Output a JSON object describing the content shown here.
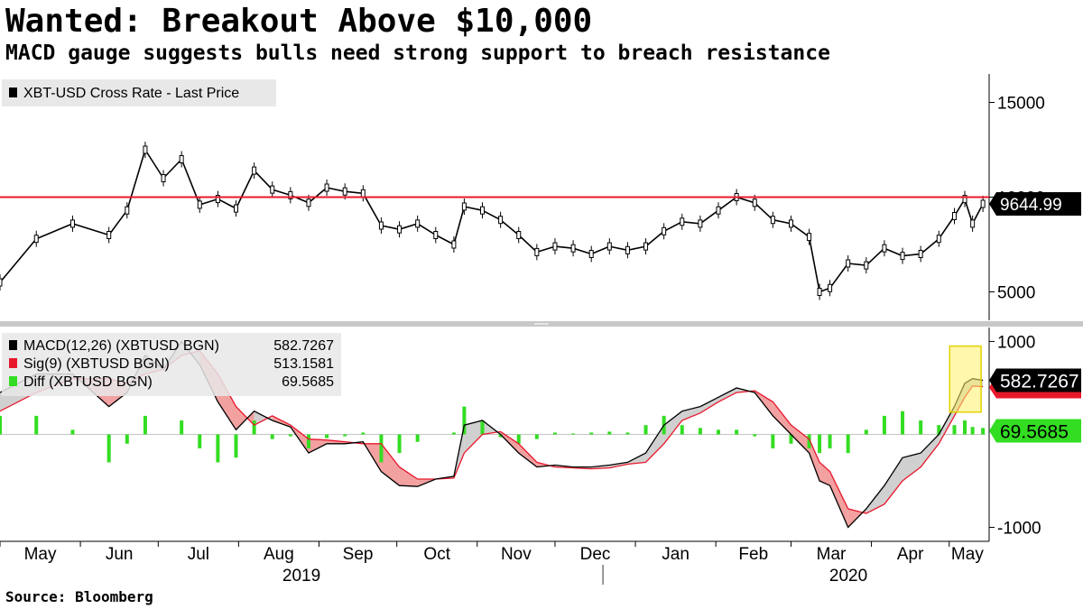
{
  "title": "Wanted: Breakout Above $10,000",
  "subtitle": "MACD gauge suggests bulls need strong support to breach resistance",
  "source": "Source: Bloomberg",
  "colors": {
    "price": "#000000",
    "resistance": "#e8182c",
    "macd": "#000000",
    "signal": "#e8182c",
    "diff": "#33dd22",
    "fill_up": "#d0d0d0",
    "fill_down": "#f2a0a0",
    "highlight": "#fff066"
  },
  "chart_data": [
    {
      "type": "line",
      "legend": [
        "XBT-USD Cross Rate - Last Price"
      ],
      "legend_position": "top-left",
      "y_axis_side": "right",
      "y_ticks": [
        "15000",
        "10000",
        "5000"
      ],
      "ylim": [
        3500,
        16500
      ],
      "grid": false,
      "resistance_level": 10000,
      "last_price_label": "9644.99",
      "x_ticks": [
        "May",
        "Jun",
        "Jul",
        "Aug",
        "Sep",
        "Oct",
        "Nov",
        "Dec",
        "Jan",
        "Feb",
        "Mar",
        "Apr",
        "May"
      ],
      "x_years": [
        "2019",
        "2020"
      ],
      "x": [
        "2019-05-01",
        "2019-05-15",
        "2019-05-29",
        "2019-06-12",
        "2019-06-19",
        "2019-06-26",
        "2019-07-03",
        "2019-07-10",
        "2019-07-17",
        "2019-07-24",
        "2019-07-31",
        "2019-08-07",
        "2019-08-14",
        "2019-08-21",
        "2019-08-28",
        "2019-09-04",
        "2019-09-11",
        "2019-09-18",
        "2019-09-25",
        "2019-10-02",
        "2019-10-09",
        "2019-10-16",
        "2019-10-23",
        "2019-10-27",
        "2019-11-03",
        "2019-11-10",
        "2019-11-17",
        "2019-11-24",
        "2019-12-01",
        "2019-12-08",
        "2019-12-15",
        "2019-12-22",
        "2019-12-29",
        "2020-01-05",
        "2020-01-12",
        "2020-01-19",
        "2020-01-26",
        "2020-02-02",
        "2020-02-09",
        "2020-02-16",
        "2020-02-23",
        "2020-03-01",
        "2020-03-08",
        "2020-03-12",
        "2020-03-16",
        "2020-03-23",
        "2020-03-30",
        "2020-04-06",
        "2020-04-13",
        "2020-04-20",
        "2020-04-27",
        "2020-05-03",
        "2020-05-07",
        "2020-05-10",
        "2020-05-14"
      ],
      "series": [
        {
          "values": [
            5500,
            7800,
            8600,
            8000,
            9300,
            12500,
            11000,
            12000,
            9600,
            9900,
            9400,
            11400,
            10400,
            10100,
            9700,
            10500,
            10300,
            10200,
            8500,
            8300,
            8600,
            8000,
            7500,
            9500,
            9300,
            8800,
            8000,
            7100,
            7400,
            7300,
            7000,
            7400,
            7200,
            7400,
            8200,
            8700,
            8600,
            9300,
            10000,
            9700,
            8800,
            8600,
            7900,
            5000,
            5200,
            6500,
            6400,
            7300,
            6900,
            7000,
            7800,
            9000,
            9900,
            8600,
            9644.99
          ]
        }
      ]
    },
    {
      "type": "line",
      "legend": [
        {
          "name": "MACD(12,26) (XBTUSD BGN)",
          "value": "582.7267"
        },
        {
          "name": "Sig(9) (XBTUSD BGN)",
          "value": "513.1581"
        },
        {
          "name": "Diff (XBTUSD BGN)",
          "value": "69.5685"
        }
      ],
      "legend_position": "top-left",
      "y_axis_side": "right",
      "y_ticks": [
        "1000",
        "-1000"
      ],
      "ylim": [
        -1150,
        1150
      ],
      "grid": false,
      "last_value_labels": [
        "582.7267",
        "69.5685"
      ],
      "highlight_region": [
        "2020-04-27",
        "2020-05-14"
      ],
      "x": [
        "2019-05-01",
        "2019-05-15",
        "2019-05-29",
        "2019-06-12",
        "2019-06-19",
        "2019-06-26",
        "2019-07-03",
        "2019-07-10",
        "2019-07-17",
        "2019-07-24",
        "2019-07-31",
        "2019-08-07",
        "2019-08-14",
        "2019-08-21",
        "2019-08-28",
        "2019-09-04",
        "2019-09-11",
        "2019-09-18",
        "2019-09-25",
        "2019-10-02",
        "2019-10-09",
        "2019-10-16",
        "2019-10-23",
        "2019-10-27",
        "2019-11-03",
        "2019-11-10",
        "2019-11-17",
        "2019-11-24",
        "2019-12-01",
        "2019-12-08",
        "2019-12-15",
        "2019-12-22",
        "2019-12-29",
        "2020-01-05",
        "2020-01-12",
        "2020-01-19",
        "2020-01-26",
        "2020-02-02",
        "2020-02-09",
        "2020-02-16",
        "2020-02-23",
        "2020-03-01",
        "2020-03-08",
        "2020-03-12",
        "2020-03-16",
        "2020-03-23",
        "2020-03-30",
        "2020-04-06",
        "2020-04-13",
        "2020-04-20",
        "2020-04-27",
        "2020-05-03",
        "2020-05-07",
        "2020-05-10",
        "2020-05-14"
      ],
      "series": [
        {
          "key": "macd",
          "values": [
            450,
            650,
            650,
            300,
            450,
            850,
            700,
            1000,
            750,
            350,
            50,
            250,
            150,
            80,
            -200,
            -100,
            -100,
            -80,
            -400,
            -550,
            -560,
            -480,
            -450,
            100,
            150,
            0,
            -200,
            -350,
            -330,
            -350,
            -350,
            -330,
            -300,
            -200,
            100,
            250,
            300,
            400,
            500,
            450,
            200,
            0,
            -200,
            -500,
            -550,
            -1000,
            -800,
            -550,
            -250,
            -200,
            0,
            300,
            550,
            600,
            582.7267
          ]
        },
        {
          "key": "signal",
          "values": [
            250,
            450,
            600,
            600,
            550,
            650,
            700,
            850,
            900,
            650,
            300,
            100,
            200,
            100,
            -50,
            -60,
            -80,
            -100,
            -100,
            -350,
            -480,
            -480,
            -470,
            -200,
            0,
            30,
            -100,
            -300,
            -350,
            -360,
            -370,
            -360,
            -320,
            -300,
            -100,
            150,
            230,
            350,
            450,
            470,
            350,
            100,
            -50,
            -300,
            -400,
            -800,
            -850,
            -750,
            -500,
            -350,
            -100,
            200,
            400,
            520,
            513.1581
          ]
        },
        {
          "key": "diff",
          "values": [
            200,
            200,
            50,
            -300,
            -100,
            200,
            0,
            150,
            -150,
            -300,
            -250,
            150,
            -50,
            -20,
            -150,
            -40,
            -20,
            20,
            -300,
            -200,
            -80,
            0,
            20,
            300,
            150,
            -30,
            -100,
            -50,
            20,
            10,
            20,
            30,
            20,
            100,
            200,
            100,
            70,
            50,
            50,
            -20,
            -150,
            -100,
            -150,
            -200,
            -150,
            -200,
            50,
            200,
            250,
            150,
            100,
            100,
            150,
            80,
            69.5685
          ]
        }
      ]
    }
  ]
}
